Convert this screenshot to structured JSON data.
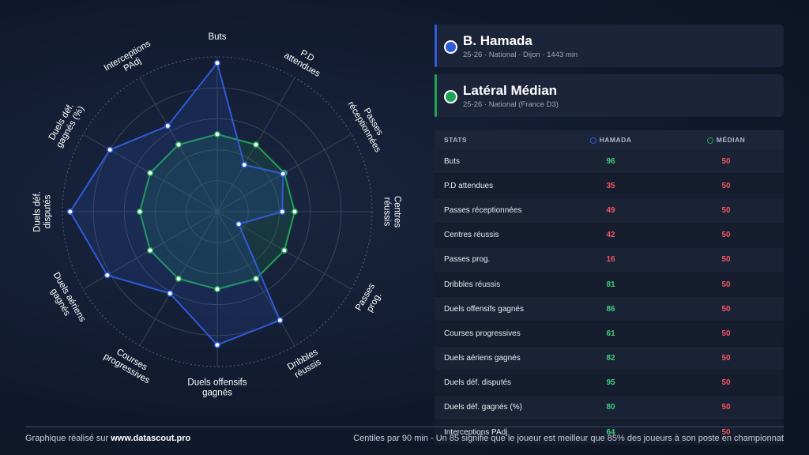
{
  "player": {
    "name": "B. Hamada",
    "meta": "25-26 · National · Dijon · 1443 min",
    "color": "#2f5bd6"
  },
  "comparison": {
    "name": "Latéral Médian",
    "meta": "25-26 · National (France D3)",
    "color": "#1fa354"
  },
  "table": {
    "headers": {
      "stats": "STATS",
      "player": "HAMADA",
      "median": "MÉDIAN"
    },
    "rows": [
      {
        "label": "Buts",
        "player": "96",
        "median": "50"
      },
      {
        "label": "P.D attendues",
        "player": "35",
        "median": "50"
      },
      {
        "label": "Passes réceptionnées",
        "player": "49",
        "median": "50"
      },
      {
        "label": "Centres réussis",
        "player": "42",
        "median": "50"
      },
      {
        "label": "Passes prog.",
        "player": "16",
        "median": "50"
      },
      {
        "label": "Dribbles réussis",
        "player": "81",
        "median": "50"
      },
      {
        "label": "Duels offensifs gagnés",
        "player": "86",
        "median": "50"
      },
      {
        "label": "Courses progressives",
        "player": "61",
        "median": "50"
      },
      {
        "label": "Duels aériens gagnés",
        "player": "82",
        "median": "50"
      },
      {
        "label": "Duels déf. disputés",
        "player": "95",
        "median": "50"
      },
      {
        "label": "Duels déf. gagnés (%)",
        "player": "80",
        "median": "50"
      },
      {
        "label": "Interceptions PAdj",
        "player": "64",
        "median": "50"
      }
    ]
  },
  "chart_data": {
    "type": "radar",
    "categories": [
      [
        "Buts"
      ],
      [
        "P.D",
        "attendues"
      ],
      [
        "Passes",
        "réceptionnées"
      ],
      [
        "Centres",
        "réussis"
      ],
      [
        "Passes",
        "prog."
      ],
      [
        "Dribbles",
        "réussis"
      ],
      [
        "Duels offensifs",
        "gagnés"
      ],
      [
        "Courses",
        "progressives"
      ],
      [
        "Duels aériens",
        "gagnés"
      ],
      [
        "Duels déf.",
        "disputés"
      ],
      [
        "Duels déf.",
        "gagnés (%)"
      ],
      [
        "Interceptions",
        "PAdj"
      ]
    ],
    "series": [
      {
        "name": "B. Hamada",
        "values": [
          96,
          35,
          49,
          42,
          16,
          81,
          86,
          61,
          82,
          95,
          80,
          64
        ],
        "color": "#2f5bd6"
      },
      {
        "name": "Latéral Médian",
        "values": [
          50,
          50,
          50,
          50,
          50,
          50,
          50,
          50,
          50,
          50,
          50,
          50
        ],
        "color": "#1fa354"
      }
    ],
    "range": [
      0,
      100
    ],
    "grid": true
  },
  "footer": {
    "left_prefix": "Graphique réalisé sur ",
    "left_site": "www.datascout.pro",
    "right": "Centiles par 90 min - Un 85 signifie que le joueur est meilleur que 85% des joueurs à son poste en championnat"
  }
}
